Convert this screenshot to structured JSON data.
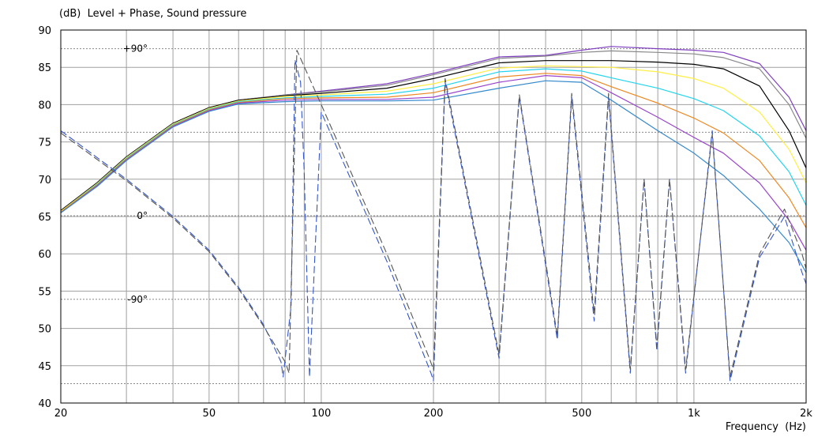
{
  "chart_data": {
    "type": "line",
    "title": "(dB)  Level + Phase, Sound pressure",
    "xlabel": "Frequency  (Hz)",
    "ylabel": "(dB)",
    "x_scale": "log",
    "xlim": [
      20,
      2000
    ],
    "ylim": [
      40,
      90
    ],
    "grid": true,
    "x_tick_labels": [
      {
        "value": 20,
        "label": "20"
      },
      {
        "value": 50,
        "label": "50"
      },
      {
        "value": 100,
        "label": "100"
      },
      {
        "value": 200,
        "label": "200"
      },
      {
        "value": 500,
        "label": "500"
      },
      {
        "value": 1000,
        "label": "1k"
      },
      {
        "value": 2000,
        "label": "2k"
      }
    ],
    "x_minor_ticks": [
      30,
      40,
      60,
      70,
      80,
      90,
      300,
      400,
      600,
      700,
      800,
      900
    ],
    "y_ticks": [
      40,
      45,
      50,
      55,
      60,
      65,
      70,
      75,
      80,
      85,
      90
    ],
    "phase_reference_lines": [
      {
        "label": "+90°",
        "db": 87.5
      },
      {
        "label": "0°",
        "db": 65.1
      },
      {
        "label": "-90°",
        "db": 53.9
      }
    ],
    "phase_ref_db": [
      42.6,
      53.9,
      65.1,
      76.3,
      87.5
    ],
    "level_series": [
      {
        "color": "#7f3fbf",
        "points": [
          [
            20,
            65.8
          ],
          [
            25,
            69.5
          ],
          [
            30,
            73
          ],
          [
            40,
            77.5
          ],
          [
            50,
            79.6
          ],
          [
            60,
            80.6
          ],
          [
            80,
            81.3
          ],
          [
            100,
            81.8
          ],
          [
            150,
            82.8
          ],
          [
            200,
            84.2
          ],
          [
            300,
            86.4
          ],
          [
            400,
            86.6
          ],
          [
            500,
            87.3
          ],
          [
            600,
            87.8
          ],
          [
            800,
            87.5
          ],
          [
            1000,
            87.3
          ],
          [
            1200,
            87
          ],
          [
            1500,
            85.5
          ],
          [
            1800,
            81
          ],
          [
            2000,
            76.5
          ]
        ]
      },
      {
        "color": "#888888",
        "points": [
          [
            20,
            65.8
          ],
          [
            25,
            69.5
          ],
          [
            30,
            73
          ],
          [
            40,
            77.5
          ],
          [
            50,
            79.6
          ],
          [
            60,
            80.6
          ],
          [
            80,
            81.3
          ],
          [
            100,
            81.7
          ],
          [
            150,
            82.6
          ],
          [
            200,
            84
          ],
          [
            300,
            86.2
          ],
          [
            400,
            86.5
          ],
          [
            500,
            87
          ],
          [
            600,
            87.2
          ],
          [
            800,
            87
          ],
          [
            1000,
            86.8
          ],
          [
            1200,
            86.3
          ],
          [
            1500,
            84.8
          ],
          [
            1800,
            80
          ],
          [
            2000,
            75.5
          ]
        ]
      },
      {
        "color": "#000000",
        "points": [
          [
            20,
            65.8
          ],
          [
            25,
            69.5
          ],
          [
            30,
            73
          ],
          [
            40,
            77.5
          ],
          [
            50,
            79.6
          ],
          [
            60,
            80.6
          ],
          [
            80,
            81.2
          ],
          [
            100,
            81.5
          ],
          [
            150,
            82.2
          ],
          [
            200,
            83.5
          ],
          [
            300,
            85.6
          ],
          [
            400,
            85.9
          ],
          [
            500,
            85.9
          ],
          [
            600,
            85.9
          ],
          [
            800,
            85.7
          ],
          [
            1000,
            85.4
          ],
          [
            1200,
            84.8
          ],
          [
            1500,
            82.5
          ],
          [
            1800,
            76.5
          ],
          [
            2000,
            71.5
          ]
        ]
      },
      {
        "color": "#ffee44",
        "points": [
          [
            20,
            65.7
          ],
          [
            25,
            69.4
          ],
          [
            30,
            72.9
          ],
          [
            40,
            77.4
          ],
          [
            50,
            79.5
          ],
          [
            60,
            80.5
          ],
          [
            80,
            81.1
          ],
          [
            100,
            81.3
          ],
          [
            150,
            81.8
          ],
          [
            200,
            82.8
          ],
          [
            300,
            84.9
          ],
          [
            400,
            85.2
          ],
          [
            500,
            85.1
          ],
          [
            600,
            85
          ],
          [
            800,
            84.4
          ],
          [
            1000,
            83.5
          ],
          [
            1200,
            82.2
          ],
          [
            1500,
            79
          ],
          [
            1800,
            74
          ],
          [
            2000,
            69.5
          ]
        ]
      },
      {
        "color": "#22d4ee",
        "points": [
          [
            20,
            65.6
          ],
          [
            25,
            69.3
          ],
          [
            30,
            72.8
          ],
          [
            40,
            77.3
          ],
          [
            50,
            79.4
          ],
          [
            60,
            80.4
          ],
          [
            80,
            80.9
          ],
          [
            100,
            81.1
          ],
          [
            150,
            81.4
          ],
          [
            200,
            82.2
          ],
          [
            300,
            84.4
          ],
          [
            400,
            84.8
          ],
          [
            500,
            84.5
          ],
          [
            600,
            83.6
          ],
          [
            800,
            82.2
          ],
          [
            1000,
            80.8
          ],
          [
            1200,
            79.2
          ],
          [
            1500,
            75.8
          ],
          [
            1800,
            71
          ],
          [
            2000,
            66.5
          ]
        ]
      },
      {
        "color": "#ee8822",
        "points": [
          [
            20,
            65.6
          ],
          [
            25,
            69.2
          ],
          [
            30,
            72.7
          ],
          [
            40,
            77.2
          ],
          [
            50,
            79.3
          ],
          [
            60,
            80.3
          ],
          [
            80,
            80.8
          ],
          [
            100,
            80.9
          ],
          [
            150,
            81
          ],
          [
            200,
            81.6
          ],
          [
            300,
            83.7
          ],
          [
            400,
            84.2
          ],
          [
            500,
            83.9
          ],
          [
            600,
            82.4
          ],
          [
            800,
            80.2
          ],
          [
            1000,
            78.2
          ],
          [
            1200,
            76.2
          ],
          [
            1500,
            72.5
          ],
          [
            1800,
            67.5
          ],
          [
            2000,
            63.5
          ]
        ]
      },
      {
        "color": "#9944cc",
        "points": [
          [
            20,
            65.5
          ],
          [
            25,
            69.1
          ],
          [
            30,
            72.6
          ],
          [
            40,
            77.1
          ],
          [
            50,
            79.2
          ],
          [
            60,
            80.2
          ],
          [
            80,
            80.6
          ],
          [
            100,
            80.7
          ],
          [
            150,
            80.7
          ],
          [
            200,
            81
          ],
          [
            300,
            83
          ],
          [
            400,
            83.9
          ],
          [
            500,
            83.6
          ],
          [
            600,
            81.6
          ],
          [
            800,
            78.3
          ],
          [
            1000,
            75.6
          ],
          [
            1200,
            73.5
          ],
          [
            1500,
            69.5
          ],
          [
            1800,
            64.5
          ],
          [
            2000,
            60.5
          ]
        ]
      },
      {
        "color": "#3388cc",
        "points": [
          [
            20,
            65.5
          ],
          [
            25,
            69
          ],
          [
            30,
            72.5
          ],
          [
            40,
            77
          ],
          [
            50,
            79.1
          ],
          [
            60,
            80.1
          ],
          [
            80,
            80.4
          ],
          [
            100,
            80.5
          ],
          [
            150,
            80.5
          ],
          [
            200,
            80.6
          ],
          [
            300,
            82.2
          ],
          [
            400,
            83.2
          ],
          [
            500,
            83
          ],
          [
            600,
            80.6
          ],
          [
            800,
            76.5
          ],
          [
            1000,
            73.5
          ],
          [
            1200,
            70.5
          ],
          [
            1500,
            66
          ],
          [
            1800,
            61.5
          ],
          [
            2000,
            57.5
          ]
        ]
      }
    ],
    "phase_series": [
      {
        "color": "#3355cc",
        "points": [
          [
            20,
            76.5
          ],
          [
            30,
            70
          ],
          [
            40,
            65
          ],
          [
            50,
            60.5
          ],
          [
            60,
            55.5
          ],
          [
            70,
            50.5
          ],
          [
            78,
            45.5
          ],
          [
            79,
            43.5
          ],
          [
            83,
            53
          ],
          [
            85,
            86
          ],
          [
            88,
            83
          ],
          [
            90,
            71
          ],
          [
            93,
            43.5
          ],
          [
            100,
            79
          ],
          [
            150,
            59
          ],
          [
            197,
            44
          ],
          [
            200,
            43
          ],
          [
            215,
            83
          ],
          [
            300,
            46
          ],
          [
            340,
            81
          ],
          [
            430,
            48.5
          ],
          [
            470,
            81
          ],
          [
            540,
            51
          ],
          [
            590,
            81
          ],
          [
            675,
            44
          ],
          [
            735,
            70
          ],
          [
            795,
            47
          ],
          [
            860,
            70
          ],
          [
            950,
            44
          ],
          [
            1120,
            76.5
          ],
          [
            1250,
            43
          ],
          [
            1500,
            59.5
          ],
          [
            1750,
            65
          ],
          [
            1950,
            57.5
          ],
          [
            2000,
            56
          ]
        ]
      },
      {
        "color": "#555555",
        "points": [
          [
            20,
            76.2
          ],
          [
            30,
            69.8
          ],
          [
            40,
            64.8
          ],
          [
            50,
            60.3
          ],
          [
            60,
            55.3
          ],
          [
            70,
            50.3
          ],
          [
            80,
            45.5
          ],
          [
            82,
            44
          ],
          [
            86,
            87.3
          ],
          [
            100,
            80
          ],
          [
            150,
            60
          ],
          [
            195,
            46
          ],
          [
            200,
            44.5
          ],
          [
            215,
            83.5
          ],
          [
            300,
            46.5
          ],
          [
            340,
            81.3
          ],
          [
            430,
            49
          ],
          [
            470,
            81.5
          ],
          [
            540,
            52
          ],
          [
            590,
            81.5
          ],
          [
            675,
            44.5
          ],
          [
            735,
            70
          ],
          [
            795,
            47.5
          ],
          [
            860,
            70
          ],
          [
            950,
            44.5
          ],
          [
            1120,
            76
          ],
          [
            1250,
            43.5
          ],
          [
            1500,
            60
          ],
          [
            1750,
            66
          ],
          [
            1950,
            60
          ],
          [
            2000,
            58
          ]
        ]
      }
    ]
  }
}
